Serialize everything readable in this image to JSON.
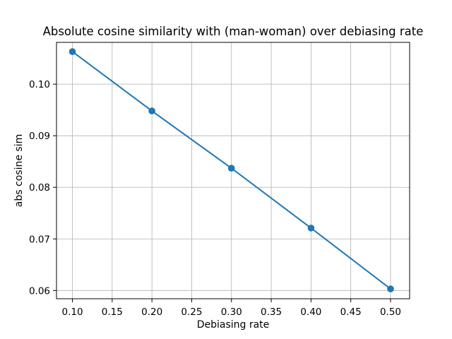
{
  "figure": {
    "background": "#ffffff"
  },
  "chart_data": {
    "type": "line",
    "title": "Absolute cosine similarity with (man-woman) over debiasing rate",
    "xlabel": "Debiasing rate",
    "ylabel": "abs cosine sim",
    "x": [
      0.1,
      0.2,
      0.3,
      0.4,
      0.5
    ],
    "series": [
      {
        "name": "abs cosine sim",
        "values": [
          0.1063,
          0.0948,
          0.0837,
          0.0721,
          0.0603
        ]
      }
    ],
    "x_ticks": [
      0.1,
      0.15,
      0.2,
      0.25,
      0.3,
      0.35,
      0.4,
      0.45,
      0.5
    ],
    "x_tick_labels": [
      "0.10",
      "0.15",
      "0.20",
      "0.25",
      "0.30",
      "0.35",
      "0.40",
      "0.45",
      "0.50"
    ],
    "y_ticks": [
      0.06,
      0.07,
      0.08,
      0.09,
      0.1
    ],
    "y_tick_labels": [
      "0.06",
      "0.07",
      "0.08",
      "0.09",
      "0.10"
    ],
    "xlim": [
      0.08,
      0.524
    ],
    "ylim": [
      0.0584,
      0.1081
    ],
    "grid": true,
    "legend": "none",
    "line_color": "#1f77b4",
    "marker": "circle",
    "grid_color": "#b0b0b0",
    "spine_color": "#000000",
    "text_color": "#000000"
  }
}
